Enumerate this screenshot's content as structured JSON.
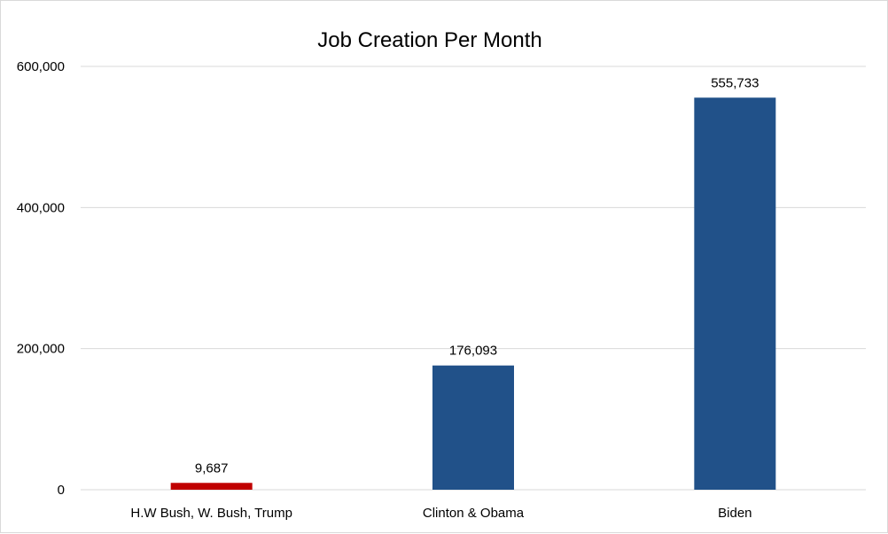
{
  "chart_data": {
    "type": "bar",
    "title": "Job Creation Per Month",
    "categories": [
      "H.W Bush, W. Bush, Trump",
      "Clinton & Obama",
      "Biden"
    ],
    "values": [
      9687,
      176093,
      555733
    ],
    "value_labels": [
      "9,687",
      "176,093",
      "555,733"
    ],
    "bar_colors": [
      "#C00000",
      "#215189",
      "#215189"
    ],
    "ylim": [
      0,
      600000
    ],
    "yticks": [
      0,
      200000,
      400000,
      600000
    ],
    "ytick_labels": [
      "0",
      "200,000",
      "400,000",
      "600,000"
    ],
    "xlabel": "",
    "ylabel": "",
    "grid": true,
    "legend": "none"
  }
}
